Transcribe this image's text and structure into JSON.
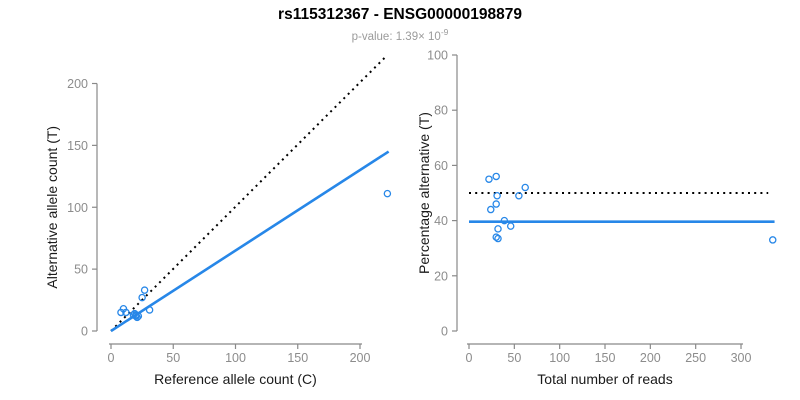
{
  "header": {
    "title": "rs115312367 - ENSG00000198879",
    "subtitle_prefix": "p-value: 1.39× ",
    "subtitle_base": "10",
    "subtitle_exponent": "-9"
  },
  "colors": {
    "point_stroke": "#2787e8",
    "regression_line": "#2787e8",
    "reference_line": "#000000",
    "axis_line": "#898989",
    "tick_label": "#8c8c8c",
    "axis_title": "#1a1a1a"
  },
  "chart_data": [
    {
      "type": "scatter",
      "name": "allele-counts",
      "xlabel": "Reference allele count (C)",
      "ylabel": "Alternative allele count (T)",
      "xticks": [
        0,
        50,
        100,
        150,
        200
      ],
      "yticks": [
        0,
        50,
        100,
        150,
        200
      ],
      "xlim": [
        0,
        224
      ],
      "ylim": [
        0,
        224
      ],
      "grid": false,
      "legend": "none",
      "points": [
        [
          27,
          33
        ],
        [
          25,
          27
        ],
        [
          10,
          18
        ],
        [
          8,
          15
        ],
        [
          12,
          15
        ],
        [
          31,
          17
        ],
        [
          18,
          13
        ],
        [
          19,
          14
        ],
        [
          20,
          13
        ],
        [
          20,
          12
        ],
        [
          21,
          11
        ],
        [
          22,
          12
        ],
        [
          222,
          111
        ]
      ],
      "lines": [
        {
          "name": "identity-line",
          "style": "dotted",
          "color_key": "reference_line",
          "from": [
            0,
            0
          ],
          "to": [
            222,
            223
          ]
        },
        {
          "name": "regression-line",
          "style": "solid",
          "color_key": "regression_line",
          "from": [
            0,
            0
          ],
          "to": [
            223,
            145
          ]
        }
      ]
    },
    {
      "type": "scatter",
      "name": "percentage-alternative",
      "xlabel": "Total number of reads",
      "ylabel": "Percentage alternative (T)",
      "xticks": [
        0,
        50,
        100,
        150,
        200,
        250,
        300
      ],
      "yticks": [
        0,
        20,
        40,
        60,
        80,
        100
      ],
      "xlim": [
        0,
        337
      ],
      "ylim": [
        0,
        100
      ],
      "grid": false,
      "legend": "none",
      "points": [
        [
          22,
          55
        ],
        [
          30,
          56
        ],
        [
          62,
          52
        ],
        [
          55,
          49
        ],
        [
          31,
          49
        ],
        [
          30,
          46
        ],
        [
          24,
          44
        ],
        [
          39,
          40
        ],
        [
          46,
          38
        ],
        [
          32,
          37
        ],
        [
          30,
          34
        ],
        [
          32,
          33.5
        ],
        [
          335,
          33
        ]
      ],
      "lines": [
        {
          "name": "fifty-percent-line",
          "style": "dotted",
          "color_key": "reference_line",
          "from": [
            0,
            50
          ],
          "to": [
            330,
            50
          ]
        },
        {
          "name": "mean-percentage-line",
          "style": "solid",
          "color_key": "regression_line",
          "from": [
            0,
            39.6
          ],
          "to": [
            337,
            39.6
          ]
        }
      ]
    }
  ]
}
